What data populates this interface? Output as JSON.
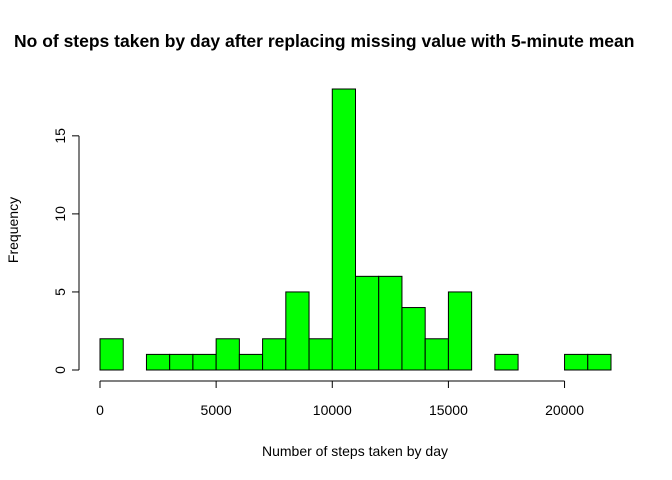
{
  "chart_data": {
    "type": "bar",
    "title": "No of steps taken by day after replacing missing value with 5-minute mean",
    "xlabel": "Number of steps taken by day",
    "ylabel": "Frequency",
    "bin_width": 1000,
    "bin_starts": [
      0,
      1000,
      2000,
      3000,
      4000,
      5000,
      6000,
      7000,
      8000,
      9000,
      10000,
      11000,
      12000,
      13000,
      14000,
      15000,
      16000,
      17000,
      18000,
      19000,
      20000,
      21000
    ],
    "values": [
      2,
      0,
      1,
      1,
      1,
      2,
      1,
      2,
      5,
      2,
      18,
      6,
      6,
      4,
      2,
      5,
      0,
      1,
      0,
      0,
      1,
      1
    ],
    "xlim": [
      0,
      22000
    ],
    "ylim": [
      0,
      18
    ],
    "x_ticks": [
      0,
      5000,
      10000,
      15000,
      20000
    ],
    "x_tick_labels": [
      "0",
      "5000",
      "10000",
      "15000",
      "20000"
    ],
    "y_ticks": [
      0,
      5,
      10,
      15
    ],
    "y_tick_labels": [
      "0",
      "5",
      "10",
      "15"
    ],
    "bar_color": "#00ff00",
    "bar_border_color": "#000000",
    "grid": false
  }
}
